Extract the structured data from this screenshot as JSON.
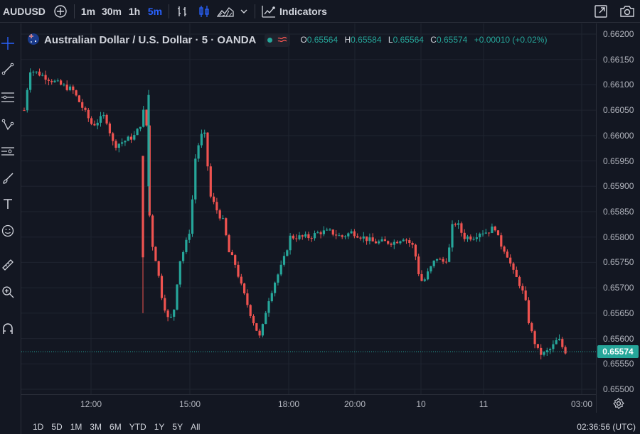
{
  "toolbar": {
    "symbol": "AUDUSD",
    "intervals": [
      "1m",
      "30m",
      "1h",
      "5m"
    ],
    "active_interval": "5m",
    "indicators_label": "Indicators",
    "icons": [
      "compare-plus-icon",
      "bar-style-icon",
      "candle-style-icon",
      "area-style-icon",
      "chevron-down-icon",
      "indicators-icon",
      "fullscreen-icon",
      "snapshot-icon"
    ]
  },
  "colors": {
    "background": "#131722",
    "up": "#26a69a",
    "down": "#ef5350",
    "accent": "#2962ff",
    "grid": "#1f2430"
  },
  "legend": {
    "title": "Australian Dollar / U.S. Dollar · 5 · OANDA",
    "open_k": "O",
    "open": "0.65564",
    "high_k": "H",
    "high": "0.65584",
    "low_k": "L",
    "low": "0.65564",
    "close_k": "C",
    "close": "0.65574",
    "change": "+0.00010 (+0.02%)"
  },
  "price_axis": [
    "0.66200",
    "0.66150",
    "0.66100",
    "0.66050",
    "0.66000",
    "0.65950",
    "0.65900",
    "0.65850",
    "0.65800",
    "0.65750",
    "0.65700",
    "0.65650",
    "0.65600",
    "0.65550",
    "0.65500"
  ],
  "current_price": "0.65574",
  "time_axis": [
    "12:00",
    "15:00",
    "18:00",
    "20:00",
    "10",
    "11",
    "03:00"
  ],
  "bottom": {
    "ranges": [
      "1D",
      "5D",
      "1M",
      "3M",
      "6M",
      "YTD",
      "1Y",
      "5Y",
      "All"
    ],
    "clock": "02:36:56 (UTC)"
  },
  "chart_data": {
    "type": "candlestick",
    "symbol": "AUDUSD",
    "ylim": [
      0.655,
      0.662
    ],
    "x_ticks": [
      "12:00",
      "15:00",
      "18:00",
      "20:00",
      "10",
      "11",
      "03:00"
    ],
    "close_path": [
      [
        "10:30",
        0.6607
      ],
      [
        "11:00",
        0.6613
      ],
      [
        "11:30",
        0.6612
      ],
      [
        "12:00",
        0.6607
      ],
      [
        "12:30",
        0.6605
      ],
      [
        "13:00",
        0.6603
      ],
      [
        "13:30",
        0.6598
      ],
      [
        "14:00",
        0.66
      ],
      [
        "14:20",
        0.6605
      ],
      [
        "14:30",
        0.658
      ],
      [
        "14:40",
        0.6568
      ],
      [
        "15:00",
        0.6565
      ],
      [
        "15:15",
        0.6588
      ],
      [
        "15:30",
        0.6595
      ],
      [
        "15:45",
        0.6585
      ],
      [
        "16:30",
        0.6575
      ],
      [
        "17:00",
        0.6566
      ],
      [
        "17:15",
        0.656
      ],
      [
        "17:30",
        0.657
      ],
      [
        "18:00",
        0.6578
      ],
      [
        "19:00",
        0.658
      ],
      [
        "20:00",
        0.658
      ],
      [
        "21:00",
        0.6579
      ],
      [
        "22:00",
        0.6578
      ],
      [
        "22:30",
        0.6572
      ],
      [
        "23:00",
        0.6573
      ],
      [
        "23:30",
        0.6582
      ],
      [
        "00:00",
        0.658
      ],
      [
        "00:30",
        0.658
      ],
      [
        "01:00",
        0.6575
      ],
      [
        "01:30",
        0.6565
      ],
      [
        "02:00",
        0.6558
      ],
      [
        "02:30",
        0.6557
      ]
    ],
    "last": 0.65574
  }
}
